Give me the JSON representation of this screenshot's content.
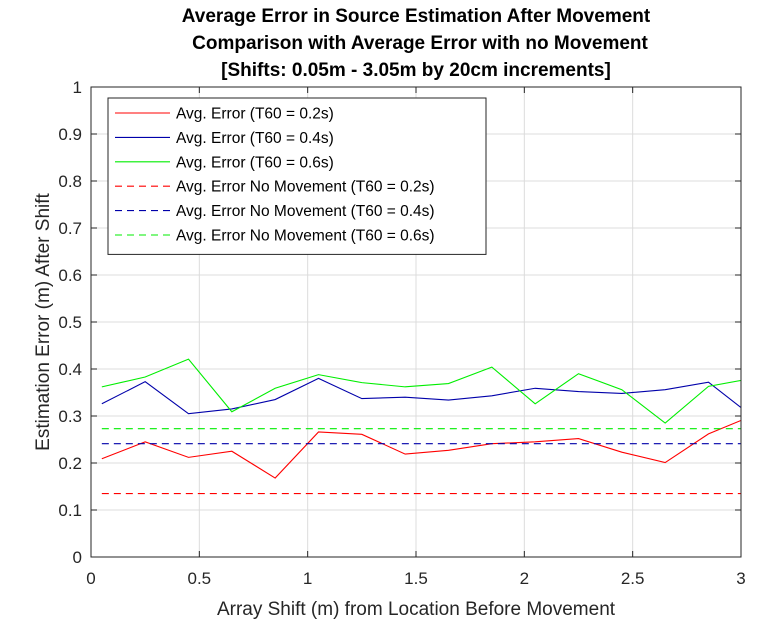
{
  "chart_data": {
    "type": "line",
    "title": [
      "Average Error in Source Estimation After Movement",
      "Comparison with Average Error with no Movement",
      "[Shifts: 0.05m - 3.05m by 20cm increments]"
    ],
    "xlabel": "Array Shift (m) from Location Before Movement",
    "ylabel": "Estimation Error (m) After Shift",
    "xlim": [
      0,
      3
    ],
    "ylim": [
      0,
      1
    ],
    "xticks": [
      0,
      0.5,
      1,
      1.5,
      2,
      2.5,
      3
    ],
    "xtick_labels": [
      "0",
      "0.5",
      "1",
      "1.5",
      "2",
      "2.5",
      "3"
    ],
    "yticks": [
      0,
      0.1,
      0.2,
      0.3,
      0.4,
      0.5,
      0.6,
      0.7,
      0.8,
      0.9,
      1
    ],
    "ytick_labels": [
      "0",
      "0.1",
      "0.2",
      "0.3",
      "0.4",
      "0.5",
      "0.6",
      "0.7",
      "0.8",
      "0.9",
      "1"
    ],
    "grid": true,
    "legend_position": "top-left",
    "x": [
      0.05,
      0.25,
      0.45,
      0.65,
      0.85,
      1.05,
      1.25,
      1.45,
      1.65,
      1.85,
      2.05,
      2.25,
      2.45,
      2.65,
      2.85,
      3.05
    ],
    "series": [
      {
        "name": "Avg. Error (T60 = 0.2s)",
        "color": "#ff0000",
        "style": "solid",
        "values": [
          0.209,
          0.245,
          0.212,
          0.225,
          0.168,
          0.266,
          0.261,
          0.219,
          0.227,
          0.241,
          0.245,
          0.252,
          0.223,
          0.201,
          0.262,
          0.3
        ]
      },
      {
        "name": "Avg. Error (T60 = 0.4s)",
        "color": "#0000aa",
        "style": "solid",
        "values": [
          0.326,
          0.373,
          0.305,
          0.315,
          0.335,
          0.38,
          0.337,
          0.34,
          0.334,
          0.343,
          0.359,
          0.352,
          0.348,
          0.356,
          0.372,
          0.3
        ]
      },
      {
        "name": "Avg. Error (T60 = 0.6s)",
        "color": "#00ee00",
        "style": "solid",
        "values": [
          0.362,
          0.383,
          0.421,
          0.309,
          0.359,
          0.388,
          0.371,
          0.362,
          0.369,
          0.404,
          0.326,
          0.39,
          0.356,
          0.285,
          0.363,
          0.38
        ]
      },
      {
        "name": "Avg. Error No Movement (T60 = 0.2s)",
        "color": "#ff0000",
        "style": "dashed",
        "values": [
          0.135,
          0.135,
          0.135,
          0.135,
          0.135,
          0.135,
          0.135,
          0.135,
          0.135,
          0.135,
          0.135,
          0.135,
          0.135,
          0.135,
          0.135,
          0.135
        ]
      },
      {
        "name": "Avg. Error No Movement (T60 = 0.4s)",
        "color": "#0000aa",
        "style": "dashed",
        "values": [
          0.241,
          0.241,
          0.241,
          0.241,
          0.241,
          0.241,
          0.241,
          0.241,
          0.241,
          0.241,
          0.241,
          0.241,
          0.241,
          0.241,
          0.241,
          0.241
        ]
      },
      {
        "name": "Avg. Error No Movement (T60 = 0.6s)",
        "color": "#00ee00",
        "style": "dashed",
        "values": [
          0.273,
          0.273,
          0.273,
          0.273,
          0.273,
          0.273,
          0.273,
          0.273,
          0.273,
          0.273,
          0.273,
          0.273,
          0.273,
          0.273,
          0.273,
          0.273
        ]
      }
    ]
  }
}
